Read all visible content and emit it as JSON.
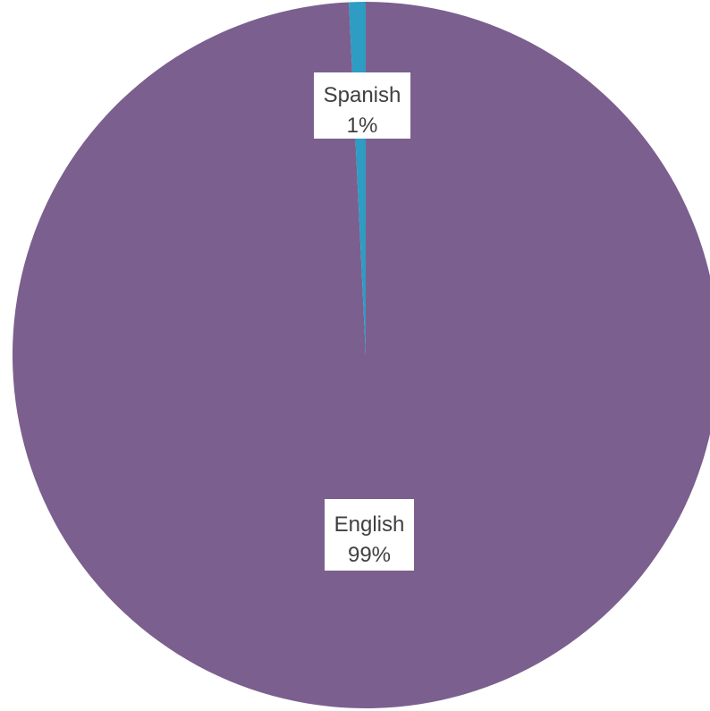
{
  "chart_data": {
    "type": "pie",
    "categories": [
      "English",
      "Spanish"
    ],
    "values": [
      99,
      1
    ],
    "colors": [
      "#7B5F8E",
      "#2E9CC3"
    ],
    "data_labels": [
      {
        "category": "English",
        "percent": "99%"
      },
      {
        "category": "Spanish",
        "percent": "1%"
      }
    ],
    "exact_fractions": [
      0.9924,
      0.0076
    ],
    "title": "",
    "legend": "none"
  }
}
